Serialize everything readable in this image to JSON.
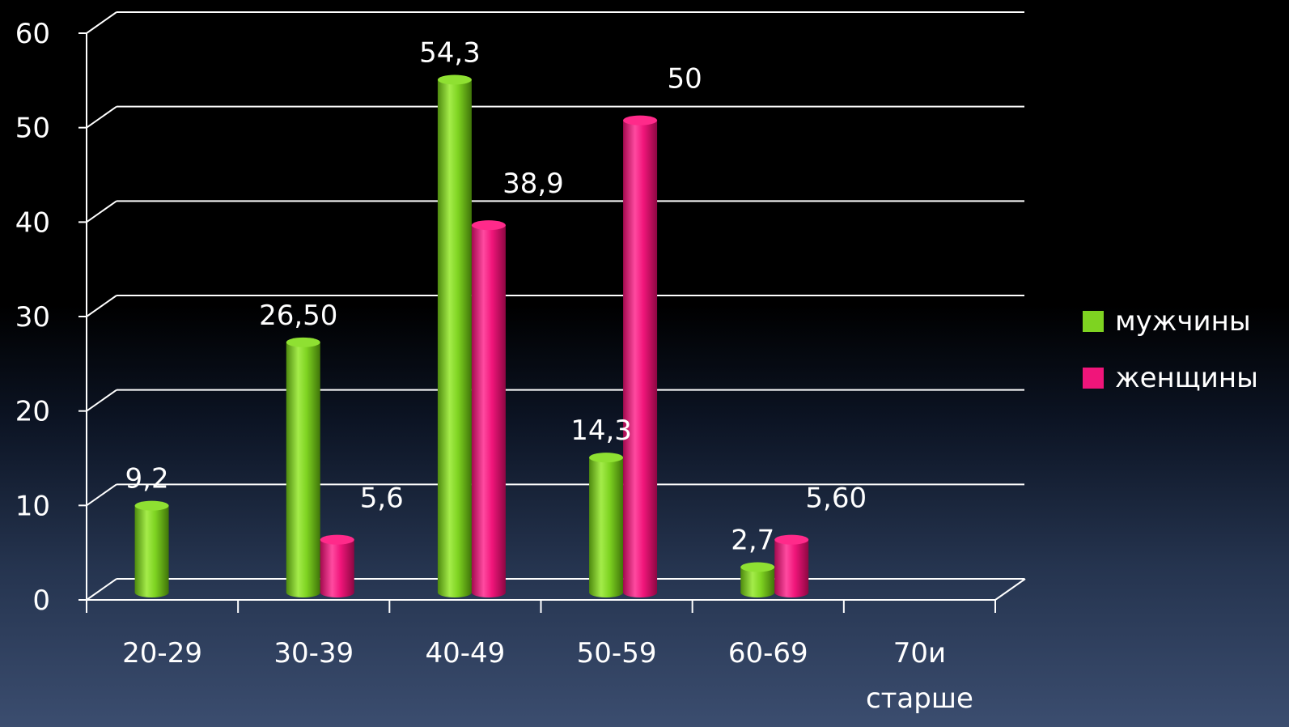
{
  "chart_data": {
    "type": "bar",
    "categories": [
      "20-29",
      "30-39",
      "40-49",
      "50-59",
      "60-69",
      "70и старше"
    ],
    "series": [
      {
        "name": "мужчины",
        "color": "#7ed321",
        "values": [
          9.2,
          26.5,
          54.3,
          14.3,
          2.7,
          null
        ],
        "labels": [
          "9,2",
          "26,50",
          "54,3",
          "14,3",
          "2,7",
          ""
        ]
      },
      {
        "name": "женщины",
        "color": "#f0157a",
        "values": [
          null,
          5.6,
          38.9,
          50,
          5.6,
          null
        ],
        "labels": [
          "",
          "5,6",
          "38,9",
          "50",
          "5,60",
          ""
        ]
      }
    ],
    "yticks": [
      "0",
      "10",
      "20",
      "30",
      "40",
      "50",
      "60"
    ],
    "ylim": [
      0,
      60
    ],
    "grid": true,
    "legend_position": "right",
    "bar_style": "3d-cylinder"
  }
}
